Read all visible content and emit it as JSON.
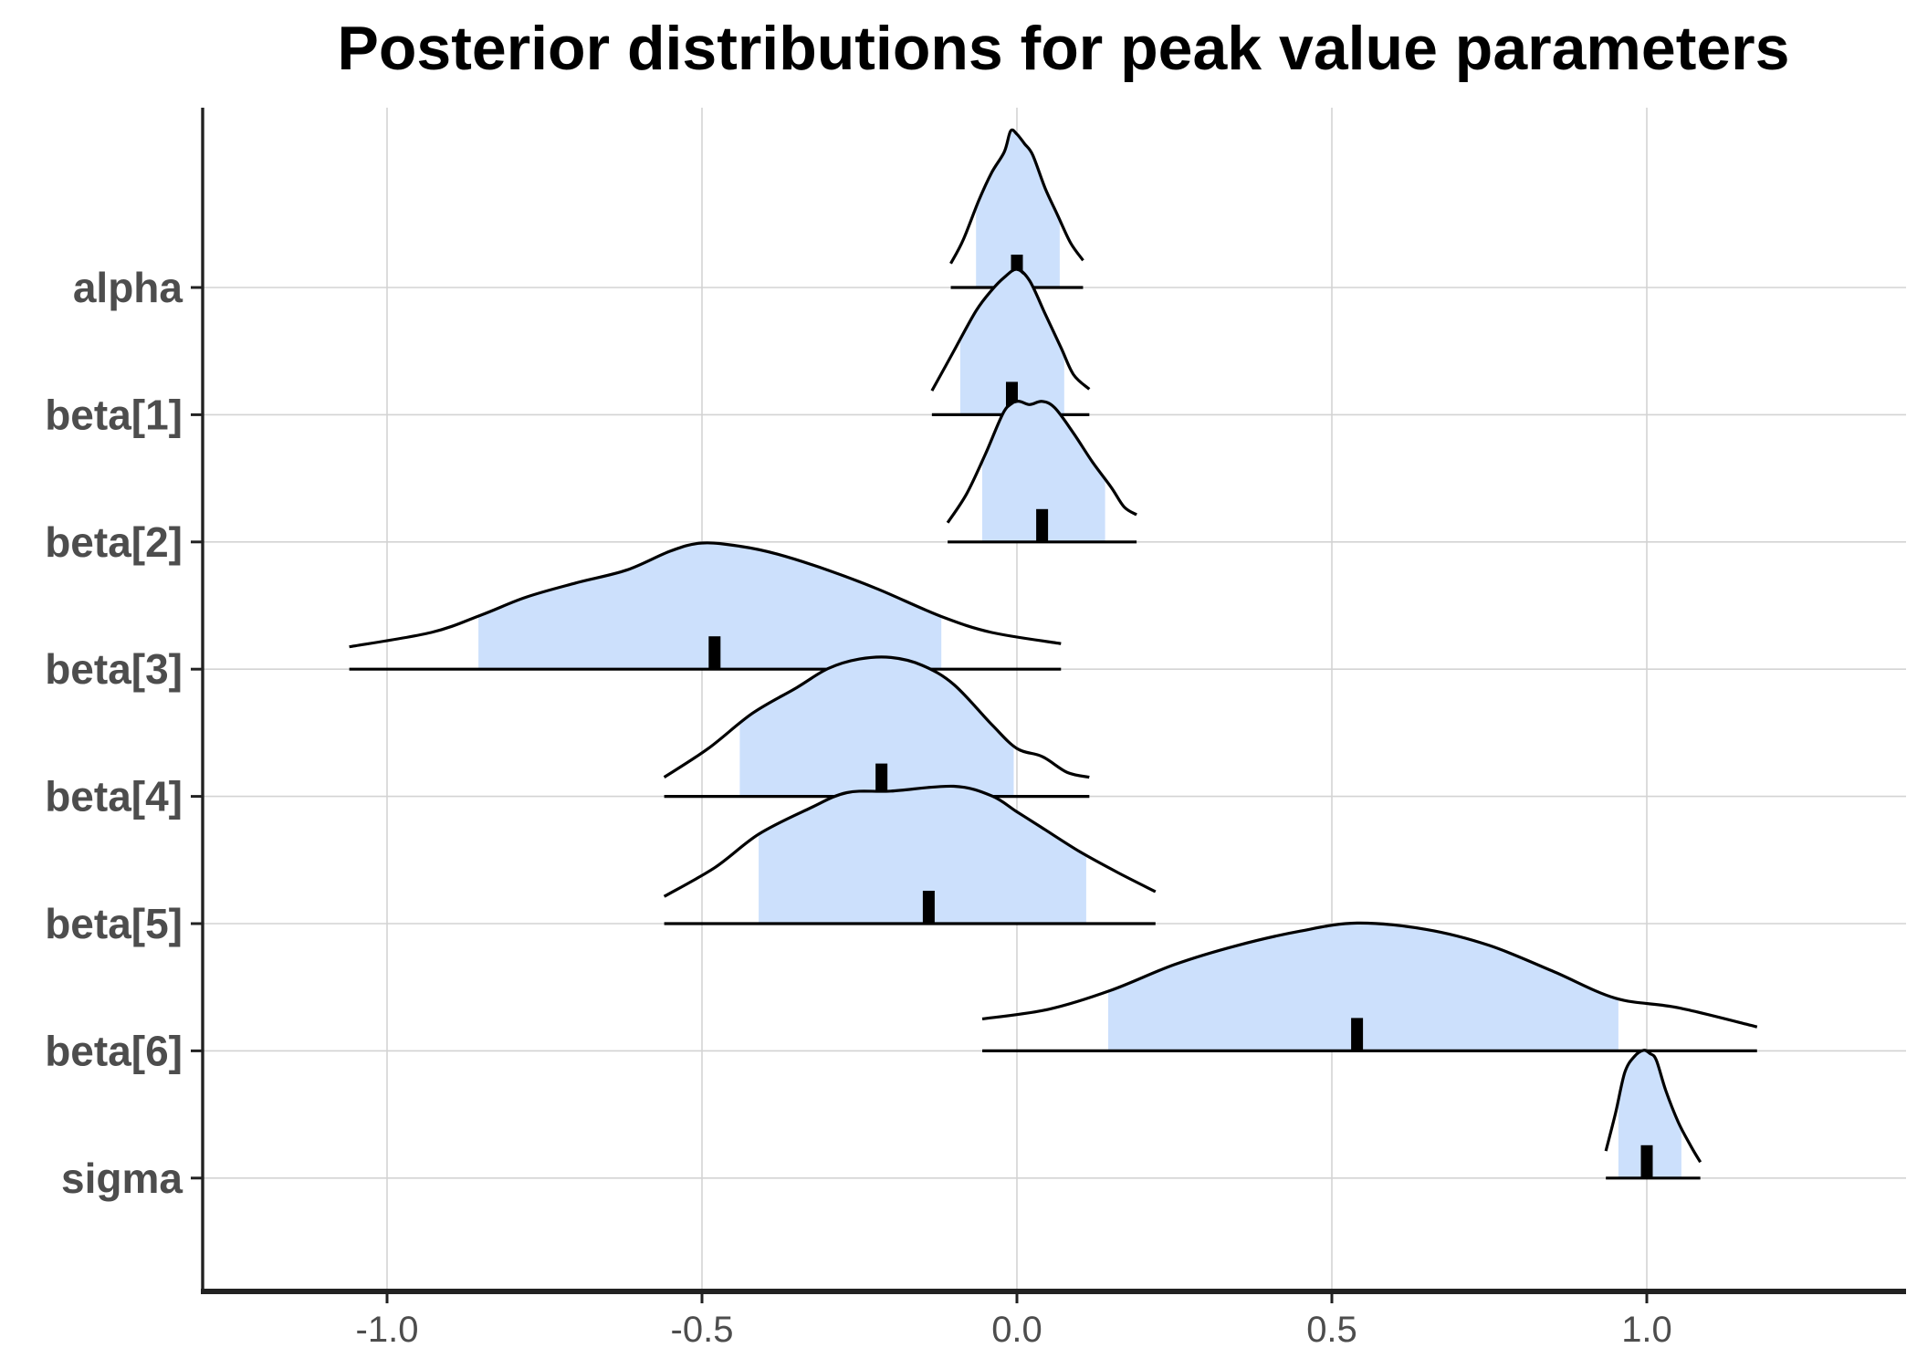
{
  "chart_data": {
    "type": "area",
    "title": "Posterior distributions for peak value parameters",
    "xlabel": "",
    "ylabel": "",
    "xlim": [
      -1.3,
      1.4
    ],
    "x_ticks": [
      "-1.0",
      "-0.5",
      "0.0",
      "0.5",
      "1.0"
    ],
    "x_tick_values": [
      -1.0,
      -0.5,
      0.0,
      0.5,
      1.0
    ],
    "grid": true,
    "colors": {
      "fill": "#cce0fc",
      "outline": "#000000",
      "grid": "#d3d3d3",
      "axis": "#222222"
    },
    "parameters": [
      {
        "label": "alpha",
        "median": 0.0,
        "ci_inner": [
          -0.065,
          0.068
        ],
        "range": [
          -0.105,
          0.105
        ],
        "density": [
          [
            -0.105,
            0.15
          ],
          [
            -0.085,
            0.3
          ],
          [
            -0.06,
            0.55
          ],
          [
            -0.04,
            0.72
          ],
          [
            -0.02,
            0.85
          ],
          [
            -0.01,
            0.98
          ],
          [
            0.0,
            0.96
          ],
          [
            0.012,
            0.9
          ],
          [
            0.025,
            0.83
          ],
          [
            0.045,
            0.62
          ],
          [
            0.065,
            0.45
          ],
          [
            0.085,
            0.28
          ],
          [
            0.105,
            0.17
          ]
        ]
      },
      {
        "label": "beta[1]",
        "median": -0.008,
        "ci_inner": [
          -0.09,
          0.075
        ],
        "range": [
          -0.135,
          0.115
        ],
        "density": [
          [
            -0.135,
            0.15
          ],
          [
            -0.1,
            0.4
          ],
          [
            -0.065,
            0.65
          ],
          [
            -0.04,
            0.78
          ],
          [
            -0.02,
            0.86
          ],
          [
            0.0,
            0.91
          ],
          [
            0.02,
            0.84
          ],
          [
            0.045,
            0.63
          ],
          [
            0.07,
            0.42
          ],
          [
            0.09,
            0.25
          ],
          [
            0.115,
            0.16
          ]
        ]
      },
      {
        "label": "beta[2]",
        "median": 0.04,
        "ci_inner": [
          -0.055,
          0.14
        ],
        "range": [
          -0.11,
          0.19
        ],
        "density": [
          [
            -0.11,
            0.12
          ],
          [
            -0.08,
            0.3
          ],
          [
            -0.05,
            0.55
          ],
          [
            -0.02,
            0.82
          ],
          [
            0.0,
            0.88
          ],
          [
            0.02,
            0.86
          ],
          [
            0.04,
            0.88
          ],
          [
            0.06,
            0.84
          ],
          [
            0.09,
            0.68
          ],
          [
            0.12,
            0.5
          ],
          [
            0.15,
            0.34
          ],
          [
            0.17,
            0.22
          ],
          [
            0.19,
            0.17
          ]
        ]
      },
      {
        "label": "beta[3]",
        "median": -0.48,
        "ci_inner": [
          -0.855,
          -0.12
        ],
        "range": [
          -1.06,
          0.07
        ],
        "density": [
          [
            -1.06,
            0.14
          ],
          [
            -0.93,
            0.23
          ],
          [
            -0.85,
            0.34
          ],
          [
            -0.78,
            0.45
          ],
          [
            -0.7,
            0.54
          ],
          [
            -0.62,
            0.62
          ],
          [
            -0.55,
            0.74
          ],
          [
            -0.5,
            0.79
          ],
          [
            -0.44,
            0.77
          ],
          [
            -0.38,
            0.72
          ],
          [
            -0.3,
            0.62
          ],
          [
            -0.22,
            0.5
          ],
          [
            -0.12,
            0.33
          ],
          [
            -0.04,
            0.23
          ],
          [
            0.07,
            0.16
          ]
        ]
      },
      {
        "label": "beta[4]",
        "median": -0.215,
        "ci_inner": [
          -0.44,
          -0.005
        ],
        "range": [
          -0.56,
          0.115
        ],
        "density": [
          [
            -0.56,
            0.12
          ],
          [
            -0.49,
            0.3
          ],
          [
            -0.42,
            0.52
          ],
          [
            -0.35,
            0.68
          ],
          [
            -0.3,
            0.8
          ],
          [
            -0.25,
            0.86
          ],
          [
            -0.2,
            0.87
          ],
          [
            -0.15,
            0.82
          ],
          [
            -0.1,
            0.7
          ],
          [
            -0.04,
            0.45
          ],
          [
            0.0,
            0.3
          ],
          [
            0.04,
            0.25
          ],
          [
            0.08,
            0.15
          ],
          [
            0.115,
            0.12
          ]
        ]
      },
      {
        "label": "beta[5]",
        "median": -0.14,
        "ci_inner": [
          -0.41,
          0.11
        ],
        "range": [
          -0.56,
          0.22
        ],
        "density": [
          [
            -0.56,
            0.17
          ],
          [
            -0.48,
            0.35
          ],
          [
            -0.41,
            0.56
          ],
          [
            -0.33,
            0.72
          ],
          [
            -0.27,
            0.82
          ],
          [
            -0.2,
            0.83
          ],
          [
            -0.1,
            0.86
          ],
          [
            -0.04,
            0.8
          ],
          [
            0.0,
            0.7
          ],
          [
            0.04,
            0.6
          ],
          [
            0.1,
            0.45
          ],
          [
            0.16,
            0.32
          ],
          [
            0.22,
            0.2
          ]
        ]
      },
      {
        "label": "beta[6]",
        "median": 0.54,
        "ci_inner": [
          0.145,
          0.955
        ],
        "range": [
          -0.055,
          1.175
        ],
        "density": [
          [
            -0.055,
            0.2
          ],
          [
            0.05,
            0.26
          ],
          [
            0.15,
            0.38
          ],
          [
            0.25,
            0.54
          ],
          [
            0.35,
            0.66
          ],
          [
            0.45,
            0.75
          ],
          [
            0.54,
            0.8
          ],
          [
            0.65,
            0.76
          ],
          [
            0.75,
            0.66
          ],
          [
            0.85,
            0.5
          ],
          [
            0.95,
            0.33
          ],
          [
            1.05,
            0.27
          ],
          [
            1.175,
            0.15
          ]
        ]
      },
      {
        "label": "sigma",
        "median": 1.0,
        "ci_inner": [
          0.955,
          1.055
        ],
        "range": [
          0.935,
          1.085
        ],
        "density": [
          [
            0.935,
            0.17
          ],
          [
            0.95,
            0.4
          ],
          [
            0.965,
            0.66
          ],
          [
            0.98,
            0.76
          ],
          [
            0.995,
            0.8
          ],
          [
            1.005,
            0.78
          ],
          [
            1.015,
            0.74
          ],
          [
            1.03,
            0.55
          ],
          [
            1.05,
            0.35
          ],
          [
            1.07,
            0.2
          ],
          [
            1.085,
            0.1
          ]
        ]
      }
    ]
  }
}
